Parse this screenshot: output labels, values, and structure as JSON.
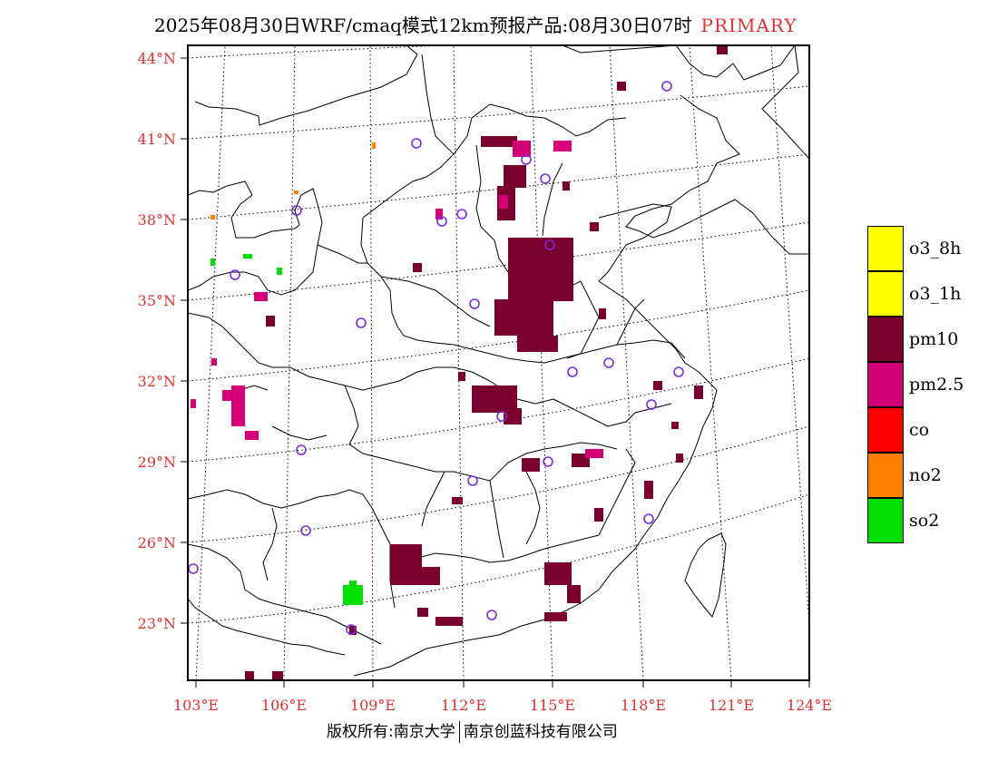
{
  "title": {
    "main": "2025年08月30日WRF/cmaq模式12km预报产品:08月30日07时",
    "tag": "PRIMARY",
    "tag_color": "#e03030"
  },
  "axes": {
    "lat_labels": [
      "44°N",
      "41°N",
      "38°N",
      "35°N",
      "32°N",
      "29°N",
      "26°N",
      "23°N"
    ],
    "lon_labels": [
      "103°E",
      "106°E",
      "109°E",
      "112°E",
      "115°E",
      "118°E",
      "121°E",
      "124°E"
    ]
  },
  "legend": {
    "items": [
      {
        "label": "o3_8h",
        "color": "#ffff00"
      },
      {
        "label": "o3_1h",
        "color": "#ffff00"
      },
      {
        "label": "pm10",
        "color": "#7a0030"
      },
      {
        "label": "pm2.5",
        "color": "#d40078"
      },
      {
        "label": "co",
        "color": "#ff0000"
      },
      {
        "label": "no2",
        "color": "#ff8000"
      },
      {
        "label": "so2",
        "color": "#00e000"
      }
    ]
  },
  "footer": {
    "left": "版权所有:南京大学",
    "right": "南京创蓝科技有限公司"
  },
  "colors": {
    "pm10": "#7a0030",
    "pm25": "#d40078",
    "so2": "#00e000",
    "no2": "#ff8000",
    "station": "#7a2be0",
    "label": "#e03030"
  }
}
